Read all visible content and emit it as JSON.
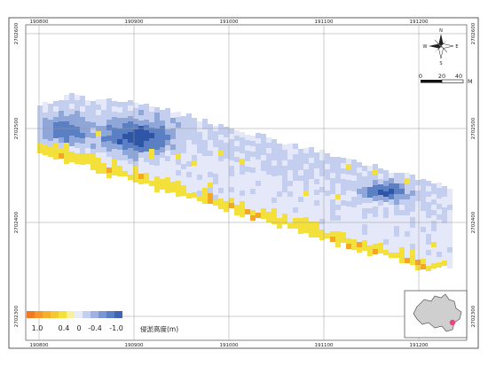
{
  "map": {
    "x_ticks": [
      "190800",
      "190900",
      "191000",
      "191100",
      "191200"
    ],
    "y_ticks": [
      "2702600",
      "2702500",
      "2702400",
      "2702300"
    ],
    "colors": {
      "deep_blue": "#2f56a6",
      "mid_blue": "#5a7fc2",
      "light_blue": "#8ea6d8",
      "pale_blue": "#c4cff0",
      "near_white": "#e4e8f8",
      "yellow": "#f4e03a",
      "orange": "#f5a623",
      "deep_orange": "#f07a22",
      "grid": "#9a9a9a"
    }
  },
  "legend": {
    "colors": [
      "#f07a22",
      "#f5962a",
      "#f5b02a",
      "#f6c733",
      "#f4e03a",
      "#f8f0a0",
      "#e8ecfa",
      "#c4cff0",
      "#9fb2e2",
      "#7b96d2",
      "#5a7fc2",
      "#3f65b3"
    ],
    "labels": [
      "1.0",
      "0.4",
      "0",
      "-0.4",
      "-1.0"
    ],
    "title": "侵淤高度(m)"
  },
  "compass": {
    "north": "N",
    "south": "S",
    "east": "E",
    "west": "W"
  },
  "scale_bar": {
    "labels": [
      "0",
      "20",
      "40"
    ],
    "unit": "M"
  },
  "inset": {
    "marker_color": "#e8457e"
  }
}
